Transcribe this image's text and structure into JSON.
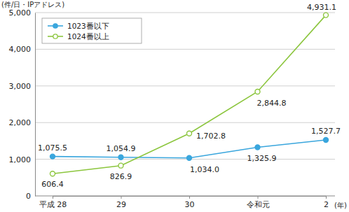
{
  "chart_data": {
    "type": "line",
    "y_label": "(件/日・IPアドレス)",
    "x_label": "(年)",
    "categories": [
      "平成 28",
      "29",
      "30",
      "令和元",
      "2"
    ],
    "series": [
      {
        "name": "1023番以下",
        "color": "#3aa6dd",
        "marker": "circle",
        "values": [
          1075.5,
          1054.9,
          1034.0,
          1325.9,
          1527.7
        ],
        "value_labels": [
          "1,075.5",
          "1,054.9",
          "1,034.0",
          "1,325.9",
          "1,527.7"
        ]
      },
      {
        "name": "1024番以上",
        "color": "#8cc63e",
        "marker": "open-circle",
        "values": [
          606.4,
          826.9,
          1702.8,
          2844.8,
          4931.1
        ],
        "value_labels": [
          "606.4",
          "826.9",
          "1,702.8",
          "2,844.8",
          "4,931.1"
        ]
      }
    ],
    "ylim": [
      0,
      5000
    ],
    "yticks": [
      0,
      {
        "value": 1000,
        "label": "1,000"
      },
      {
        "value": 2000,
        "label": "2,000"
      },
      {
        "value": 3000,
        "label": "3,000"
      },
      {
        "value": 4000,
        "label": "4,000"
      },
      {
        "value": 5000,
        "label": "5,000"
      }
    ],
    "grid": true,
    "legend": "upper-left",
    "data_labels": true
  }
}
